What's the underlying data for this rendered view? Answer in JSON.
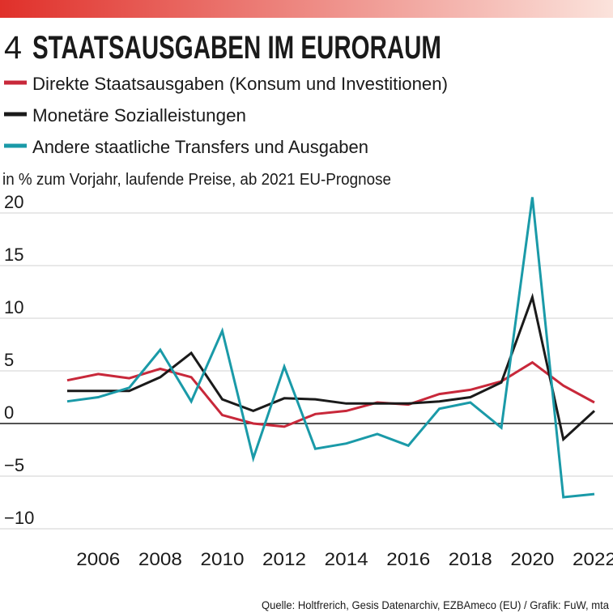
{
  "chart_data": {
    "type": "line",
    "number": "4",
    "title": "STAATSAUSGABEN IM EURORAUM",
    "subtitle": "in % zum Vorjahr, laufende Preise, ab 2021 EU-Prognose",
    "source": "Quelle: Holtfrerich, Gesis Datenarchiv, EZBAmeco (EU) / Grafik: FuW, mta",
    "x": [
      2005,
      2006,
      2007,
      2008,
      2009,
      2010,
      2011,
      2012,
      2013,
      2014,
      2015,
      2016,
      2017,
      2018,
      2019,
      2020,
      2021,
      2022
    ],
    "series": [
      {
        "name": "Direkte Staatsausgaben (Konsum und Investitionen)",
        "color": "#c8283a",
        "values": [
          4.1,
          4.7,
          4.3,
          5.2,
          4.4,
          0.8,
          0.0,
          -0.3,
          0.9,
          1.2,
          2.0,
          1.8,
          2.8,
          3.2,
          4.0,
          5.8,
          3.6,
          2.0
        ]
      },
      {
        "name": "Monetäre Sozialleistungen",
        "color": "#1a1a1a",
        "values": [
          3.1,
          3.1,
          3.1,
          4.4,
          6.7,
          2.3,
          1.2,
          2.4,
          2.3,
          1.9,
          1.9,
          1.9,
          2.1,
          2.5,
          3.9,
          12.0,
          -1.5,
          1.2
        ]
      },
      {
        "name": "Andere staatliche Transfers und Ausgaben",
        "color": "#1a9aa8",
        "values": [
          2.1,
          2.5,
          3.4,
          7.0,
          2.1,
          8.8,
          -3.3,
          5.4,
          -2.4,
          -1.9,
          -1.0,
          -2.1,
          1.4,
          2.0,
          -0.4,
          21.5,
          -7.0,
          -6.7
        ]
      }
    ],
    "xlim": [
      2005,
      2022
    ],
    "xticks": [
      2006,
      2008,
      2010,
      2012,
      2014,
      2016,
      2018,
      2020,
      2022
    ],
    "ylim": [
      -10,
      22
    ],
    "yticks": [
      {
        "value": -10,
        "label": "−10"
      },
      {
        "value": -5,
        "label": "−5"
      },
      0,
      5,
      10,
      15,
      20
    ],
    "grid": true
  }
}
